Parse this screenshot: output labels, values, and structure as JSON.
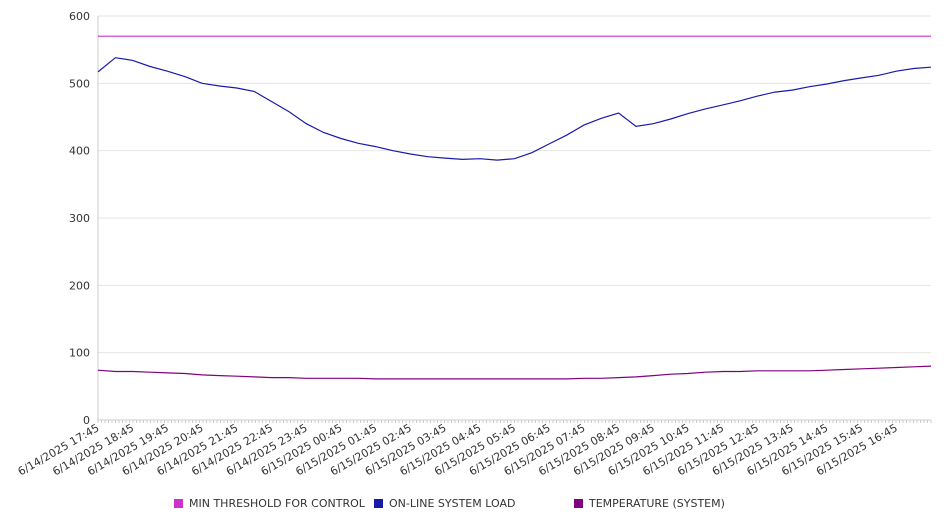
{
  "chart_data": {
    "type": "line",
    "title": "",
    "xlabel": "",
    "ylabel": "",
    "ylim": [
      0,
      600
    ],
    "yticks": [
      0,
      100,
      200,
      300,
      400,
      500,
      600
    ],
    "grid": true,
    "legend_position": "bottom",
    "xtick_labels": [
      "6/14/2025 17:45",
      "6/14/2025 18:45",
      "6/14/2025 19:45",
      "6/14/2025 20:45",
      "6/14/2025 21:45",
      "6/14/2025 22:45",
      "6/14/2025 23:45",
      "6/15/2025 00:45",
      "6/15/2025 01:45",
      "6/15/2025 02:45",
      "6/15/2025 03:45",
      "6/15/2025 04:45",
      "6/15/2025 05:45",
      "6/15/2025 06:45",
      "6/15/2025 07:45",
      "6/15/2025 08:45",
      "6/15/2025 09:45",
      "6/15/2025 10:45",
      "6/15/2025 11:45",
      "6/15/2025 12:45",
      "6/15/2025 13:45",
      "6/15/2025 14:45",
      "6/15/2025 15:45",
      "6/15/2025 16:45"
    ],
    "x": [
      "6/14/2025 17:45",
      "6/14/2025 18:15",
      "6/14/2025 18:45",
      "6/14/2025 19:15",
      "6/14/2025 19:45",
      "6/14/2025 20:15",
      "6/14/2025 20:45",
      "6/14/2025 21:15",
      "6/14/2025 21:45",
      "6/14/2025 22:15",
      "6/14/2025 22:45",
      "6/14/2025 23:15",
      "6/14/2025 23:45",
      "6/15/2025 00:15",
      "6/15/2025 00:45",
      "6/15/2025 01:15",
      "6/15/2025 01:45",
      "6/15/2025 02:15",
      "6/15/2025 02:45",
      "6/15/2025 03:15",
      "6/15/2025 03:45",
      "6/15/2025 04:15",
      "6/15/2025 04:45",
      "6/15/2025 05:15",
      "6/15/2025 05:45",
      "6/15/2025 06:15",
      "6/15/2025 06:45",
      "6/15/2025 07:15",
      "6/15/2025 07:45",
      "6/15/2025 08:15",
      "6/15/2025 08:45",
      "6/15/2025 09:15",
      "6/15/2025 09:45",
      "6/15/2025 10:15",
      "6/15/2025 10:45",
      "6/15/2025 11:15",
      "6/15/2025 11:45",
      "6/15/2025 12:15",
      "6/15/2025 12:45",
      "6/15/2025 13:15",
      "6/15/2025 13:45",
      "6/15/2025 14:15",
      "6/15/2025 14:45",
      "6/15/2025 15:15",
      "6/15/2025 15:45",
      "6/15/2025 16:15",
      "6/15/2025 16:45",
      "6/15/2025 17:15",
      "6/15/2025 17:30"
    ],
    "series": [
      {
        "name": "MIN THRESHOLD FOR CONTROL",
        "color": "#cc33cc",
        "values": [
          570,
          570,
          570,
          570,
          570,
          570,
          570,
          570,
          570,
          570,
          570,
          570,
          570,
          570,
          570,
          570,
          570,
          570,
          570,
          570,
          570,
          570,
          570,
          570,
          570,
          570,
          570,
          570,
          570,
          570,
          570,
          570,
          570,
          570,
          570,
          570,
          570,
          570,
          570,
          570,
          570,
          570,
          570,
          570,
          570,
          570,
          570,
          570,
          570
        ]
      },
      {
        "name": "ON-LINE SYSTEM LOAD",
        "color": "#1a1aaa",
        "values": [
          517,
          538,
          534,
          525,
          518,
          510,
          500,
          496,
          493,
          488,
          473,
          458,
          440,
          427,
          418,
          411,
          406,
          400,
          395,
          391,
          389,
          387,
          388,
          386,
          388,
          397,
          410,
          423,
          438,
          448,
          456,
          436,
          440,
          447,
          455,
          462,
          468,
          474,
          481,
          487,
          490,
          495,
          499,
          504,
          508,
          512,
          518,
          522,
          524
        ]
      },
      {
        "name": "TEMPERATURE (SYSTEM)",
        "color": "#800080",
        "values": [
          74,
          72,
          72,
          71,
          70,
          69,
          67,
          66,
          65,
          64,
          63,
          63,
          62,
          62,
          62,
          62,
          61,
          61,
          61,
          61,
          61,
          61,
          61,
          61,
          61,
          61,
          61,
          61,
          62,
          62,
          63,
          64,
          66,
          68,
          69,
          71,
          72,
          72,
          73,
          73,
          73,
          73,
          74,
          75,
          76,
          77,
          78,
          79,
          80
        ]
      }
    ]
  }
}
